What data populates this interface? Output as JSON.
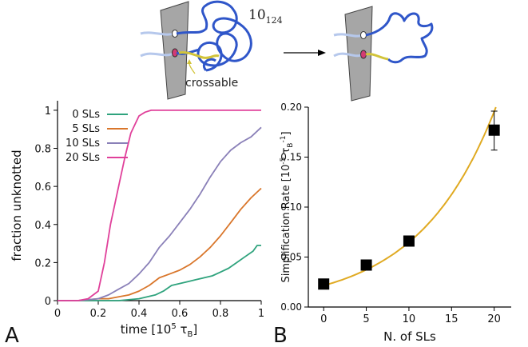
{
  "schematic": {
    "knot_label": "10",
    "knot_subscript": "124",
    "crossable_label": "crossable"
  },
  "panel_labels": {
    "a": "A",
    "b": "B"
  },
  "chart_data": [
    {
      "type": "line",
      "panel": "A",
      "xlabel": "time [10",
      "xlabel_sup": "5",
      "xlabel_tau": " τ",
      "xlabel_sub": "B",
      "xlabel_end": "]",
      "ylabel": "fraction unknotted",
      "xlim": [
        0,
        1
      ],
      "ylim": [
        0,
        1.05
      ],
      "xticks": [
        0,
        0.2,
        0.4,
        0.6,
        0.8,
        1
      ],
      "xtick_labels": [
        "0",
        "0.2",
        "0.4",
        "0.6",
        "0.8",
        "1"
      ],
      "yticks": [
        0,
        0.2,
        0.4,
        0.6,
        0.8,
        1
      ],
      "ytick_labels": [
        "0",
        "0.2",
        "0.4",
        "0.6",
        "0.8",
        "1"
      ],
      "legend_position": "top-left",
      "series": [
        {
          "name": "0 SLs",
          "color": "#2fa37d",
          "x": [
            0,
            0.1,
            0.2,
            0.3,
            0.4,
            0.44,
            0.48,
            0.52,
            0.56,
            0.6,
            0.64,
            0.68,
            0.72,
            0.76,
            0.8,
            0.84,
            0.88,
            0.92,
            0.96,
            0.98,
            1.0
          ],
          "y": [
            0,
            0,
            0,
            0,
            0.01,
            0.02,
            0.03,
            0.05,
            0.08,
            0.09,
            0.1,
            0.11,
            0.12,
            0.13,
            0.15,
            0.17,
            0.2,
            0.23,
            0.26,
            0.29,
            0.29
          ]
        },
        {
          "name": "5 SLs",
          "color": "#d9762b",
          "x": [
            0,
            0.1,
            0.2,
            0.25,
            0.3,
            0.35,
            0.4,
            0.45,
            0.5,
            0.55,
            0.6,
            0.65,
            0.7,
            0.75,
            0.8,
            0.85,
            0.9,
            0.95,
            1.0
          ],
          "y": [
            0,
            0,
            0.01,
            0.01,
            0.02,
            0.03,
            0.05,
            0.08,
            0.12,
            0.14,
            0.16,
            0.19,
            0.23,
            0.28,
            0.34,
            0.41,
            0.48,
            0.54,
            0.59
          ]
        },
        {
          "name": "10 SLs",
          "color": "#8a80b8",
          "x": [
            0,
            0.1,
            0.2,
            0.25,
            0.3,
            0.35,
            0.4,
            0.45,
            0.5,
            0.55,
            0.6,
            0.65,
            0.7,
            0.75,
            0.8,
            0.85,
            0.9,
            0.95,
            1.0
          ],
          "y": [
            0,
            0,
            0.01,
            0.03,
            0.06,
            0.09,
            0.14,
            0.2,
            0.28,
            0.34,
            0.41,
            0.48,
            0.56,
            0.65,
            0.73,
            0.79,
            0.83,
            0.86,
            0.91
          ]
        },
        {
          "name": "20 SLs",
          "color": "#e0409a",
          "x": [
            0,
            0.1,
            0.15,
            0.2,
            0.23,
            0.26,
            0.3,
            0.33,
            0.36,
            0.4,
            0.43,
            0.46,
            0.5,
            0.55,
            0.6,
            0.7,
            0.8,
            0.9,
            1.0
          ],
          "y": [
            0,
            0,
            0.01,
            0.05,
            0.2,
            0.4,
            0.6,
            0.75,
            0.88,
            0.97,
            0.99,
            1.0,
            1.0,
            1.0,
            1.0,
            1.0,
            1.0,
            1.0,
            1.0
          ]
        }
      ]
    },
    {
      "type": "scatter",
      "panel": "B",
      "xlabel": "N. of SLs",
      "ylabel": "Simplification Rate [10",
      "ylabel_sup1": "-5",
      "ylabel_tau": " τ",
      "ylabel_sub": "B",
      "ylabel_sup2": "-1",
      "ylabel_end": "]",
      "xlim": [
        -1.8,
        22
      ],
      "ylim": [
        0,
        0.2
      ],
      "xticks": [
        0,
        5,
        10,
        15,
        20
      ],
      "xtick_labels": [
        "0",
        "5",
        "10",
        "15",
        "20"
      ],
      "yticks": [
        0,
        0.05,
        0.1,
        0.15,
        0.2
      ],
      "ytick_labels": [
        "0.00",
        "0.05",
        "0.10",
        "0.15",
        "0.20"
      ],
      "points": {
        "x": [
          0,
          5,
          10,
          20
        ],
        "y": [
          0.023,
          0.042,
          0.066,
          0.177
        ]
      },
      "error_bars": {
        "x": [
          20
        ],
        "low": [
          0.157
        ],
        "high": [
          0.196
        ]
      },
      "fit": {
        "color": "#e0aa22",
        "x_from": -0.2,
        "x_to": 20.2,
        "y0": 0.021,
        "y_end": 0.2
      }
    }
  ]
}
